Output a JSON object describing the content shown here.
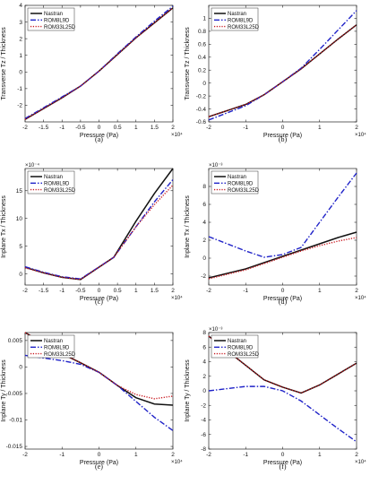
{
  "colors": {
    "Nastran": "#111111",
    "ROM8L9D": "#1f22c8",
    "ROM33L25D": "#c8161d"
  },
  "chart_data": [
    {
      "type": "line",
      "caption": "(a)",
      "xlabel": "Pressure (Pa)",
      "ylabel": "Transverse Tz / Thickness",
      "xlim": [
        -2,
        2
      ],
      "ylim": [
        -3,
        4
      ],
      "xticks": [
        -2,
        -1.5,
        -1,
        -0.5,
        0,
        0.5,
        1,
        1.5,
        2
      ],
      "yticks": [
        -2,
        -1,
        0,
        1,
        2,
        3,
        4
      ],
      "x_multiplier": "×10⁴",
      "y_multiplier": "",
      "x": [
        -2,
        -1,
        -0.5,
        0,
        0.5,
        1,
        1.5,
        2
      ],
      "series": [
        {
          "name": "Nastran",
          "style": "solid",
          "values": [
            -2.85,
            -1.55,
            -0.85,
            0.05,
            1.05,
            2.05,
            2.95,
            3.85
          ]
        },
        {
          "name": "ROM8L9D",
          "style": "dashdot",
          "values": [
            -2.8,
            -1.5,
            -0.85,
            0.05,
            1.1,
            2.1,
            3.05,
            3.95
          ]
        },
        {
          "name": "ROM33L25D",
          "style": "dotted",
          "values": [
            -2.85,
            -1.55,
            -0.85,
            0.05,
            1.05,
            2.05,
            2.95,
            3.85
          ]
        }
      ]
    },
    {
      "type": "line",
      "caption": "(b)",
      "xlabel": "Pressure (Pa)",
      "ylabel": "Transverse Tz / Thickness",
      "xlim": [
        -2,
        2
      ],
      "ylim": [
        -0.6,
        1.2
      ],
      "xticks": [
        -2,
        -1,
        0,
        1,
        2
      ],
      "yticks": [
        -0.6,
        -0.4,
        -0.2,
        0,
        0.2,
        0.4,
        0.6,
        0.8,
        1
      ],
      "x_multiplier": "×10⁴",
      "y_multiplier": "",
      "x": [
        -2,
        -1,
        -0.5,
        0,
        0.5,
        1,
        1.5,
        2
      ],
      "series": [
        {
          "name": "Nastran",
          "style": "solid",
          "values": [
            -0.52,
            -0.33,
            -0.18,
            0.02,
            0.22,
            0.45,
            0.68,
            0.9
          ]
        },
        {
          "name": "ROM8L9D",
          "style": "dashdot",
          "values": [
            -0.57,
            -0.35,
            -0.18,
            0.02,
            0.23,
            0.52,
            0.82,
            1.12
          ]
        },
        {
          "name": "ROM33L25D",
          "style": "dotted",
          "values": [
            -0.52,
            -0.33,
            -0.18,
            0.02,
            0.22,
            0.45,
            0.68,
            0.9
          ]
        }
      ]
    },
    {
      "type": "line",
      "caption": "(c)",
      "xlabel": "Pressure (Pa)",
      "ylabel": "Inplane Tx / Thickness",
      "xlim": [
        -2,
        2
      ],
      "ylim": [
        -2,
        19
      ],
      "xticks": [
        -2,
        -1.5,
        -1,
        -0.5,
        0,
        0.5,
        1,
        1.5,
        2
      ],
      "yticks": [
        0,
        5,
        10,
        15
      ],
      "x_multiplier": "×10⁴",
      "y_multiplier": "×10⁻⁴",
      "x": [
        -2,
        -1.5,
        -1,
        -0.5,
        0.4,
        1,
        1.5,
        2
      ],
      "series": [
        {
          "name": "Nastran",
          "style": "solid",
          "values": [
            1.2,
            0.2,
            -0.6,
            -1.0,
            3.0,
            9.5,
            14.5,
            19.0
          ]
        },
        {
          "name": "ROM8L9D",
          "style": "dashdot",
          "values": [
            1.3,
            0.3,
            -0.5,
            -0.9,
            3.0,
            8.5,
            13.0,
            17.0
          ]
        },
        {
          "name": "ROM33L25D",
          "style": "dotted",
          "values": [
            1.1,
            0.2,
            -0.6,
            -1.0,
            3.0,
            8.5,
            12.5,
            16.0
          ]
        }
      ]
    },
    {
      "type": "line",
      "caption": "(d)",
      "xlabel": "Pressure (Pa)",
      "ylabel": "Inplane Tx / Thickness",
      "xlim": [
        -2,
        2
      ],
      "ylim": [
        -3,
        10
      ],
      "xticks": [
        -2,
        -1,
        0,
        1,
        2
      ],
      "yticks": [
        -2,
        0,
        2,
        4,
        6,
        8
      ],
      "x_multiplier": "×10⁴",
      "y_multiplier": "×10⁻³",
      "x": [
        -2,
        -1,
        -0.5,
        0,
        0.5,
        1,
        1.5,
        2
      ],
      "series": [
        {
          "name": "Nastran",
          "style": "solid",
          "values": [
            -2.2,
            -1.2,
            -0.5,
            0.2,
            0.9,
            1.6,
            2.3,
            2.9
          ]
        },
        {
          "name": "ROM8L9D",
          "style": "dashdot",
          "values": [
            2.4,
            0.8,
            0.1,
            0.4,
            1.2,
            4.0,
            6.8,
            9.5
          ]
        },
        {
          "name": "ROM33L25D",
          "style": "dotted",
          "values": [
            -2.3,
            -1.3,
            -0.6,
            0.1,
            0.8,
            1.4,
            1.9,
            2.3
          ]
        }
      ]
    },
    {
      "type": "line",
      "caption": "(e)",
      "xlabel": "Pressure (Pa)",
      "ylabel": "Inplane Ty / Thickness",
      "xlim": [
        -2,
        2
      ],
      "ylim": [
        -0.0155,
        0.0065
      ],
      "xticks": [
        -2,
        -1,
        0,
        1,
        2
      ],
      "yticks": [
        -0.015,
        -0.01,
        -0.005,
        0,
        0.005
      ],
      "x_multiplier": "×10⁴",
      "y_multiplier": "",
      "x": [
        -2,
        -1.5,
        -1,
        -0.5,
        0,
        0.5,
        1,
        1.5,
        2
      ],
      "series": [
        {
          "name": "Nastran",
          "style": "solid",
          "values": [
            0.0065,
            0.0045,
            0.0025,
            0.0008,
            -0.001,
            -0.0035,
            -0.0058,
            -0.007,
            -0.0072
          ]
        },
        {
          "name": "ROM8L9D",
          "style": "dashdot",
          "values": [
            0.0022,
            0.0017,
            0.0012,
            0.0005,
            -0.001,
            -0.0035,
            -0.0065,
            -0.0095,
            -0.012
          ]
        },
        {
          "name": "ROM33L25D",
          "style": "dotted",
          "values": [
            0.0065,
            0.0045,
            0.0025,
            0.0008,
            -0.001,
            -0.0035,
            -0.0052,
            -0.006,
            -0.0055
          ]
        }
      ]
    },
    {
      "type": "line",
      "caption": "(f)",
      "xlabel": "Pressure (Pa)",
      "ylabel": "Inplane Ty / Thickness",
      "xlim": [
        -2,
        2
      ],
      "ylim": [
        -8,
        8
      ],
      "xticks": [
        -2,
        -1,
        0,
        1,
        2
      ],
      "yticks": [
        -8,
        -6,
        -4,
        -2,
        0,
        2,
        4,
        6,
        8
      ],
      "x_multiplier": "×10⁴",
      "y_multiplier": "×10⁻³",
      "x": [
        -2,
        -1.5,
        -1,
        -0.5,
        0,
        0.5,
        1,
        1.5,
        2
      ],
      "series": [
        {
          "name": "Nastran",
          "style": "solid",
          "values": [
            7.5,
            5.5,
            3.5,
            1.5,
            0.5,
            -0.3,
            0.8,
            2.3,
            3.8
          ]
        },
        {
          "name": "ROM8L9D",
          "style": "dashdot",
          "values": [
            0.0,
            0.3,
            0.6,
            0.6,
            0.0,
            -1.4,
            -3.3,
            -5.2,
            -7.0
          ]
        },
        {
          "name": "ROM33L25D",
          "style": "dotted",
          "values": [
            7.5,
            5.5,
            3.5,
            1.5,
            0.5,
            -0.3,
            0.8,
            2.3,
            3.8
          ]
        }
      ]
    }
  ]
}
